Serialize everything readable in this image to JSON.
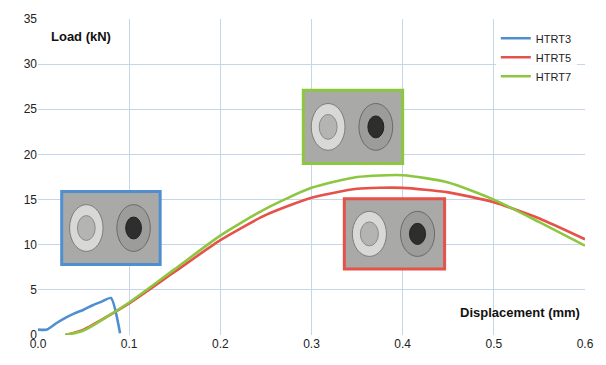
{
  "chart_data": {
    "type": "line",
    "xlabel": "Displacement (mm)",
    "ylabel": "Load (kN)",
    "series": [
      {
        "name": "HTRT3",
        "color": "#4f8fd0",
        "x": [
          0.0,
          0.01,
          0.02,
          0.03,
          0.04,
          0.05,
          0.06,
          0.07,
          0.08,
          0.09
        ],
        "values": [
          0.6,
          0.6,
          1.3,
          1.9,
          2.4,
          2.8,
          3.3,
          3.7,
          4.1,
          0.2
        ]
      },
      {
        "name": "HTRT5",
        "color": "#e5524a",
        "x": [
          0.03,
          0.05,
          0.1,
          0.15,
          0.2,
          0.25,
          0.3,
          0.35,
          0.4,
          0.45,
          0.5,
          0.55,
          0.6
        ],
        "values": [
          0.0,
          0.6,
          3.5,
          7.0,
          10.5,
          13.3,
          15.2,
          16.2,
          16.3,
          15.8,
          14.7,
          12.9,
          10.6
        ]
      },
      {
        "name": "HTRT7",
        "color": "#8dc63f",
        "x": [
          0.03,
          0.05,
          0.1,
          0.15,
          0.2,
          0.25,
          0.3,
          0.35,
          0.4,
          0.45,
          0.5,
          0.55,
          0.6
        ],
        "values": [
          0.0,
          0.5,
          3.6,
          7.3,
          11.0,
          14.0,
          16.3,
          17.5,
          17.7,
          16.9,
          15.0,
          12.5,
          9.9
        ]
      }
    ],
    "xlim": [
      0,
      0.6
    ],
    "xticks": [
      {
        "value": 0,
        "label": "0.0"
      },
      0.1,
      0.2,
      0.3,
      0.4,
      0.5,
      0.6
    ],
    "ylim": [
      0,
      35
    ],
    "yticks": [
      0,
      5,
      10,
      15,
      20,
      25,
      30,
      35
    ],
    "grid": true,
    "legend": "upper right"
  }
}
